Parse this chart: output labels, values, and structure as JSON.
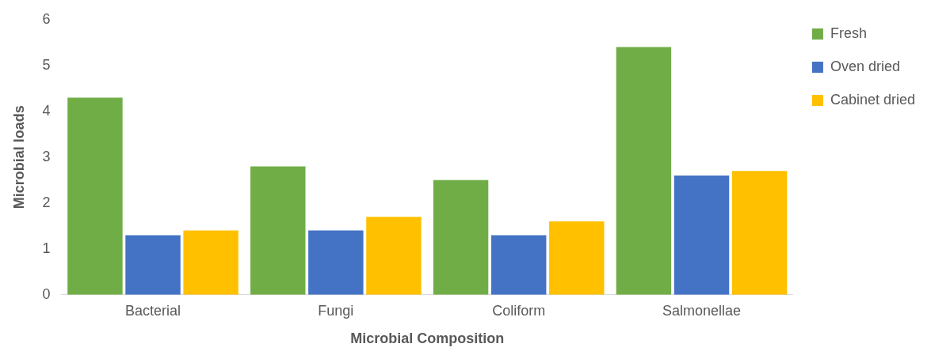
{
  "chart_data": {
    "type": "bar",
    "xlabel": "Microbial Composition",
    "ylabel": "Microbial loads",
    "categories": [
      "Bacterial",
      "Fungi",
      "Coliform",
      "Salmonellae"
    ],
    "series": [
      {
        "name": "Fresh",
        "color": "#70ad47",
        "values": [
          4.3,
          2.8,
          2.5,
          5.4
        ]
      },
      {
        "name": "Oven dried",
        "color": "#4472c4",
        "values": [
          1.3,
          1.4,
          1.3,
          2.6
        ]
      },
      {
        "name": "Cabinet dried",
        "color": "#ffc000",
        "values": [
          1.4,
          1.7,
          1.6,
          2.7
        ]
      }
    ],
    "ylim": [
      0,
      6
    ],
    "yticks": [
      0,
      1,
      2,
      3,
      4,
      5,
      6
    ],
    "grid": false,
    "legend": "top right"
  }
}
